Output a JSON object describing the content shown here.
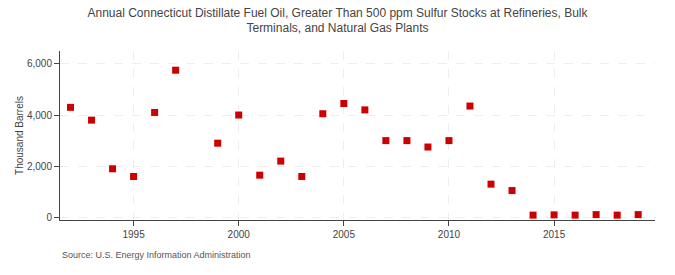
{
  "chart_data": {
    "type": "scatter",
    "title": "Annual Connecticut Distillate Fuel Oil, Greater Than 500 ppm Sulfur Stocks at Refineries, Bulk\nTerminals, and Natural Gas Plants",
    "ylabel": "Thousand Barrels",
    "annotation": "Source: U.S. Energy Information Administration",
    "x": [
      1992,
      1993,
      1994,
      1995,
      1996,
      1997,
      1999,
      2000,
      2001,
      2002,
      2003,
      2004,
      2005,
      2006,
      2007,
      2008,
      2009,
      2010,
      2011,
      2012,
      2013,
      2014,
      2015,
      2016,
      2017,
      2018,
      2019
    ],
    "values": [
      4300,
      3800,
      1900,
      1600,
      4100,
      5750,
      2900,
      4000,
      1650,
      2200,
      1600,
      4050,
      4450,
      4200,
      3000,
      3000,
      2750,
      3000,
      4350,
      1300,
      1050,
      90,
      100,
      90,
      110,
      90,
      110
    ],
    "color": "#cc0000",
    "marker": "square",
    "xlim": [
      1991.5,
      2019.8
    ],
    "ylim": [
      -100,
      6500
    ],
    "xticks": [
      1995,
      2000,
      2005,
      2010,
      2015
    ],
    "yticks": [
      0,
      {
        "value": 2000,
        "label": "2,000"
      },
      {
        "value": 4000,
        "label": "4,000"
      },
      {
        "value": 6000,
        "label": "6,000"
      }
    ],
    "grid": true
  }
}
